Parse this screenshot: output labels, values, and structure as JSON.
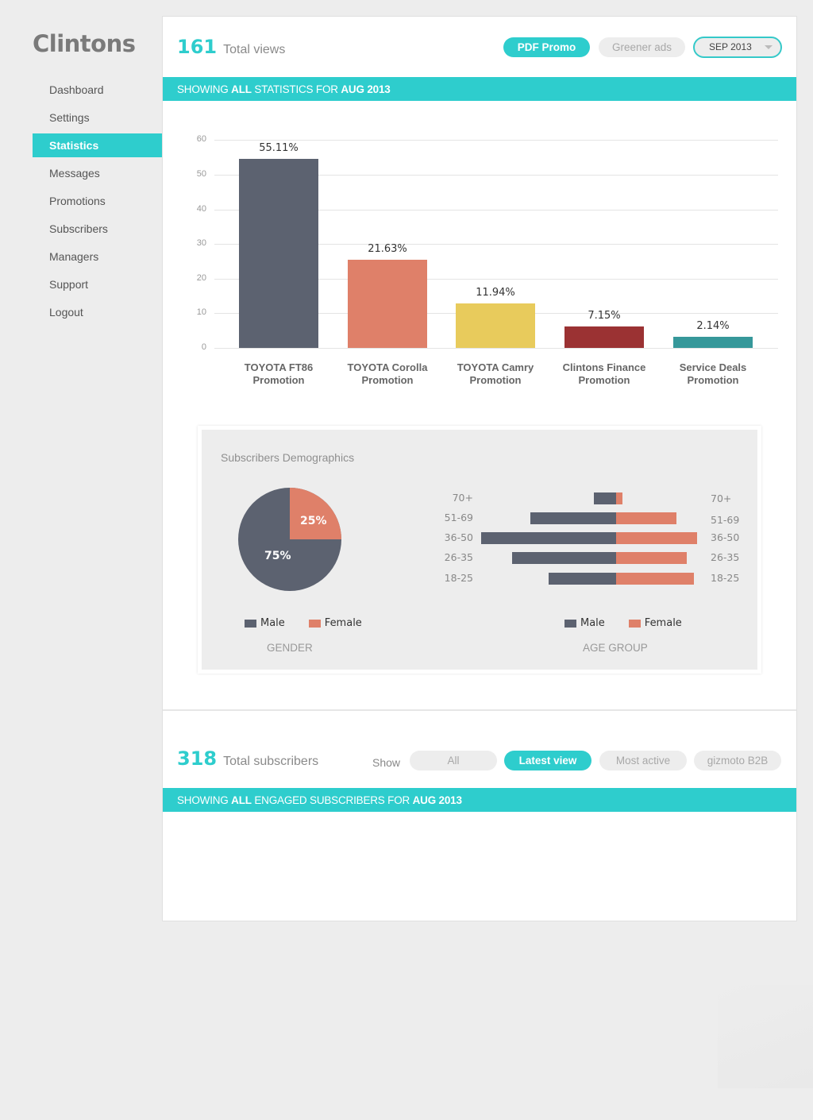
{
  "sidebar": {
    "logo": "Clintons",
    "items": [
      {
        "label": "Dashboard",
        "active": false
      },
      {
        "label": "Settings",
        "active": false
      },
      {
        "label": "Statistics",
        "active": true
      },
      {
        "label": "Messages",
        "active": false
      },
      {
        "label": "Promotions",
        "active": false
      },
      {
        "label": "Subscribers",
        "active": false
      },
      {
        "label": "Managers",
        "active": false
      },
      {
        "label": "Support",
        "active": false
      },
      {
        "label": "Logout",
        "active": false
      }
    ]
  },
  "views": {
    "count": "161",
    "label": "Total views",
    "filters": [
      {
        "label": "PDF Promo",
        "active": true
      },
      {
        "label": "Greener ads",
        "active": false
      }
    ],
    "month_select": "SEP 2013",
    "banner": {
      "pre": "SHOWING ",
      "b1": "ALL",
      "mid": " STATISTICS FOR ",
      "b2": "AUG 2013"
    }
  },
  "demographics": {
    "title": "Subscribers Demographics",
    "gender_title": "GENDER",
    "age_title": "AGE GROUP",
    "legend": {
      "male": "Male",
      "female": "Female"
    }
  },
  "subscribers": {
    "count": "318",
    "label": "Total subscribers",
    "show_label": "Show",
    "filters": [
      {
        "label": "All",
        "active": false
      },
      {
        "label": "Latest view",
        "active": true
      },
      {
        "label": "Most active",
        "active": false
      },
      {
        "label": "gizmoto B2B",
        "active": false
      }
    ],
    "banner": {
      "pre": "SHOWING ",
      "b1": "ALL",
      "mid": " ENGAGED SUBSCRIBERS FOR ",
      "b2": "AUG 2013"
    }
  },
  "colors": {
    "accent": "#2ecdcd",
    "male": "#5c6270",
    "female": "#df8069"
  },
  "chart_data": [
    {
      "type": "bar",
      "title": "",
      "xlabel": "",
      "ylabel": "",
      "ylim": [
        0,
        60
      ],
      "yticks": [
        0,
        10,
        20,
        30,
        40,
        50,
        60
      ],
      "grid": true,
      "categories": [
        "TOYOTA FT86 Promotion",
        "TOYOTA Corolla Promotion",
        "TOYOTA Camry Promotion",
        "Clintons Finance Promotion",
        "Service Deals Promotion"
      ],
      "values": [
        55.11,
        21.63,
        11.94,
        7.15,
        2.14
      ],
      "value_labels": [
        "55.11%",
        "21.63%",
        "11.94%",
        "7.15%",
        "2.14%"
      ],
      "bar_heights_estimated": [
        54.5,
        25.5,
        12.8,
        6.3,
        3.1
      ],
      "colors": [
        "#5c6270",
        "#df8069",
        "#e8cb5c",
        "#9b3233",
        "#36989a"
      ]
    },
    {
      "type": "pie",
      "title": "GENDER",
      "categories": [
        "Male",
        "Female"
      ],
      "values": [
        75,
        25
      ],
      "value_labels": [
        "75%",
        "25%"
      ],
      "colors": [
        "#5c6270",
        "#df8069"
      ],
      "legend_position": "bottom"
    },
    {
      "type": "bar",
      "subtype": "population-pyramid",
      "title": "AGE GROUP",
      "categories": [
        "70+",
        "51-69",
        "36-50",
        "26-35",
        "18-25"
      ],
      "series": [
        {
          "name": "Male",
          "values": [
            28,
            108,
            170,
            131,
            85
          ],
          "color": "#5c6270"
        },
        {
          "name": "Female",
          "values": [
            8,
            76,
            102,
            89,
            98
          ],
          "color": "#df8069"
        }
      ],
      "units": "relative (px estimate, no axis shown)",
      "legend_position": "bottom"
    }
  ]
}
